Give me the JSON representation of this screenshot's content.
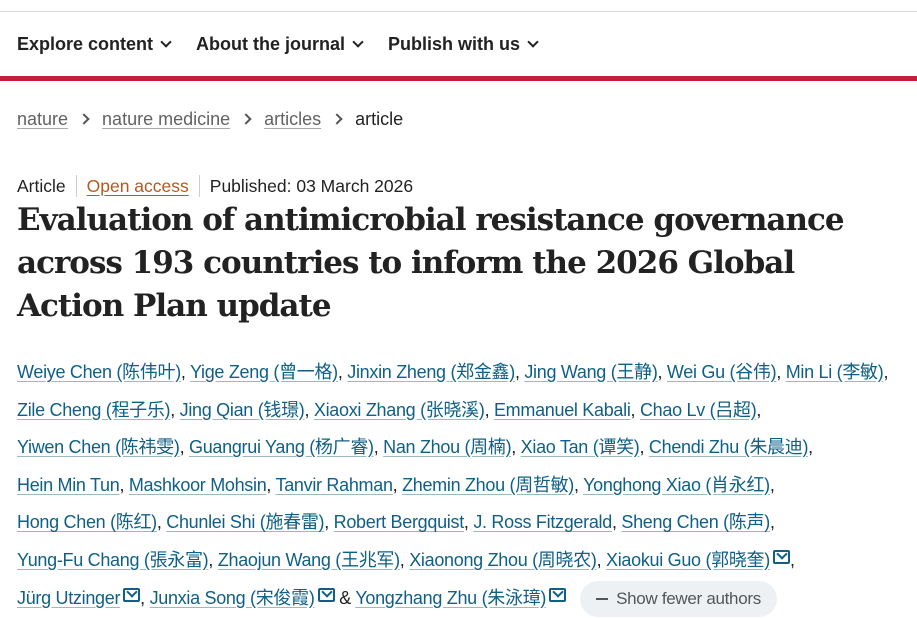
{
  "nav": {
    "items": [
      "Explore content",
      "About the journal",
      "Publish with us"
    ]
  },
  "breadcrumb": [
    "nature",
    "nature medicine",
    "articles",
    "article"
  ],
  "meta": {
    "type": "Article",
    "access": "Open access",
    "published": "Published: 03 March 2026"
  },
  "title": "Evaluation of antimicrobial resistance governance across 193 countries to inform the 2026 Global Action Plan update",
  "authors": [
    {
      "name": "Weiye Chen (陈伟叶)"
    },
    {
      "name": "Yige Zeng (曾一格)"
    },
    {
      "name": "Jinxin Zheng (郑金鑫)"
    },
    {
      "name": "Jing Wang (王静)"
    },
    {
      "name": "Wei Gu (谷伟)"
    },
    {
      "name": "Min Li (李敏)"
    },
    {
      "name": "Zile Cheng (程子乐)"
    },
    {
      "name": "Jing Qian (钱璟)"
    },
    {
      "name": "Xiaoxi Zhang (张晓溪)"
    },
    {
      "name": "Emmanuel Kabali"
    },
    {
      "name": "Chao Lv (吕超)"
    },
    {
      "name": "Yiwen Chen (陈祎雯)"
    },
    {
      "name": "Guangrui Yang (杨广睿)"
    },
    {
      "name": "Nan Zhou (周楠)"
    },
    {
      "name": "Xiao Tan (谭笑)"
    },
    {
      "name": "Chendi Zhu (朱晨迪)"
    },
    {
      "name": "Hein Min Tun"
    },
    {
      "name": "Mashkoor Mohsin"
    },
    {
      "name": "Tanvir Rahman"
    },
    {
      "name": "Zhemin Zhou (周哲敏)"
    },
    {
      "name": "Yonghong Xiao (肖永红)"
    },
    {
      "name": "Hong Chen (陈红)"
    },
    {
      "name": "Chunlei Shi (施春雷)"
    },
    {
      "name": "Robert Bergquist"
    },
    {
      "name": "J. Ross Fitzgerald"
    },
    {
      "name": "Sheng Chen (陈声)"
    },
    {
      "name": "Yung-Fu Chang (張永富)"
    },
    {
      "name": "Zhaojun Wang (王兆军)"
    },
    {
      "name": "Xiaonong Zhou (周晓农)"
    },
    {
      "name": "Xiaokui Guo (郭晓奎)",
      "email": true
    },
    {
      "name": "Jürg Utzinger",
      "email": true
    },
    {
      "name": "Junxia Song (宋俊霞)",
      "email": true
    },
    {
      "name": "Yongzhang Zhu (朱泳璋)",
      "email": true
    }
  ],
  "authors_last_sep": " & ",
  "show_fewer_label": "Show fewer authors",
  "colors": {
    "brand_red": "#c41f3a",
    "link": "#0f5f86",
    "open_access": "#b35a1f"
  }
}
